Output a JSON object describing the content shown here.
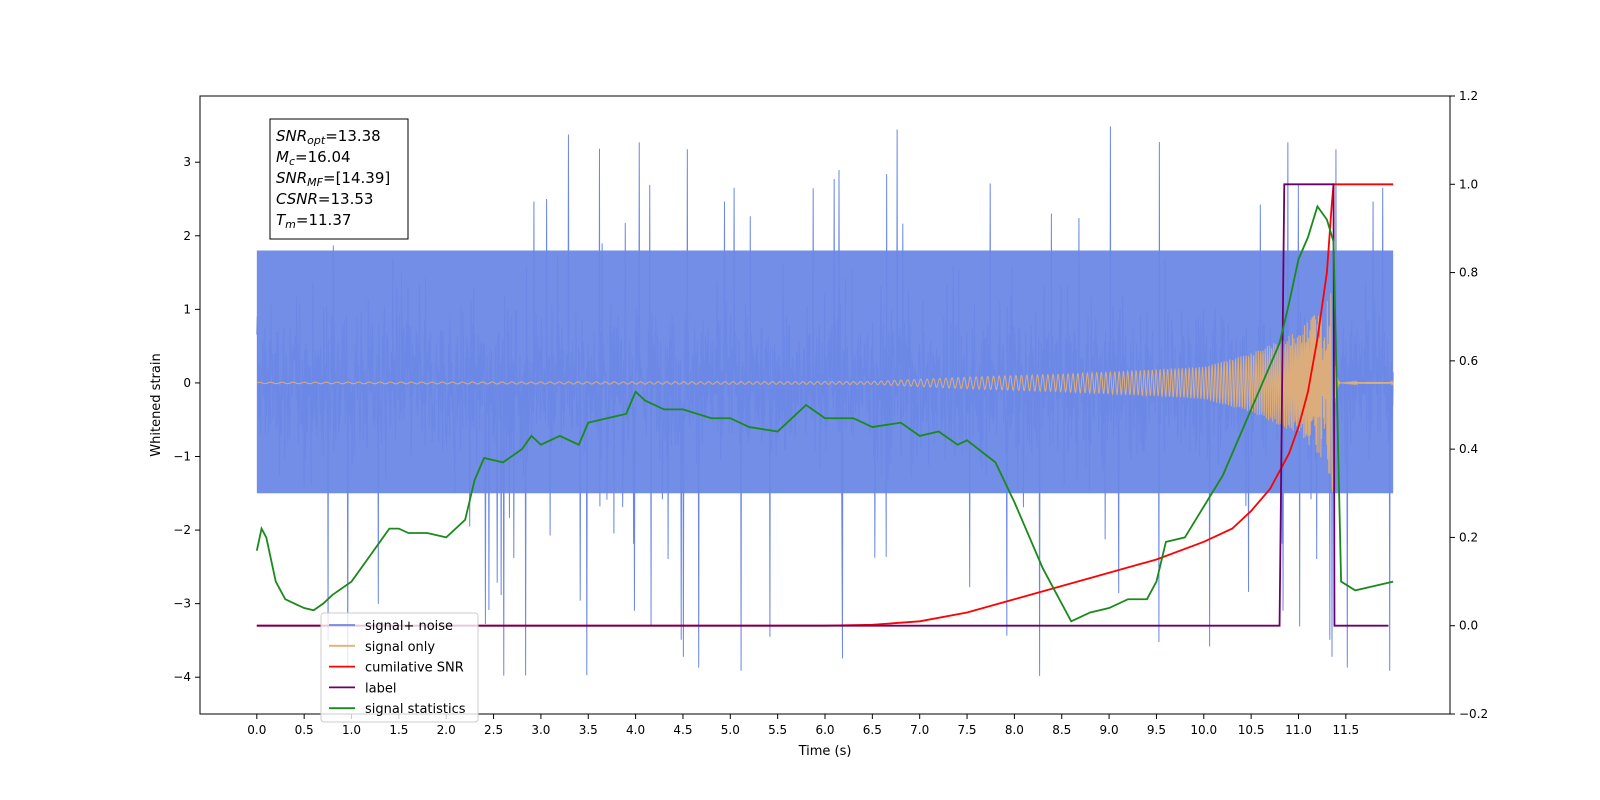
{
  "chart_data": {
    "type": "line",
    "xlabel": "Time (s)",
    "ylabel": "Whitened strain",
    "xlim": [
      -0.6,
      12.6
    ],
    "ylim": [
      -4.5,
      3.9
    ],
    "y2lim": [
      -0.2,
      1.2
    ],
    "xticks": [
      "0.0",
      "0.5",
      "1.0",
      "1.5",
      "2.0",
      "2.5",
      "3.0",
      "3.5",
      "4.0",
      "4.5",
      "5.0",
      "5.5",
      "6.0",
      "6.5",
      "7.0",
      "7.5",
      "8.0",
      "8.5",
      "9.0",
      "9.5",
      "10.0",
      "10.5",
      "11.0",
      "11.5"
    ],
    "yticks": [
      "3",
      "2",
      "1",
      "0",
      "−1",
      "−2",
      "−3",
      "−4"
    ],
    "y2ticks": [
      "1.2",
      "1.0",
      "0.8",
      "0.6",
      "0.4",
      "0.2",
      "0.0",
      "−0.2"
    ],
    "annotation": [
      {
        "sym": "SNR",
        "sub": "opt",
        "value": "=13.38"
      },
      {
        "sym": "M",
        "sub": "c",
        "value": "=16.04"
      },
      {
        "sym": "SNR",
        "sub": "MF",
        "value": "=[14.39]"
      },
      {
        "sym": "CSNR",
        "sub": "",
        "value": "=13.53"
      },
      {
        "sym": "T",
        "sub": "m",
        "value": "=11.37"
      }
    ],
    "legend_position": "lower-left",
    "series": [
      {
        "name": "signal+ noise",
        "axis": "left",
        "color": "#6b88e6",
        "noise_band": [
          -1.5,
          2.0
        ],
        "spike_range": [
          -4.0,
          3.5
        ],
        "x_range": [
          0.0,
          12.0
        ]
      },
      {
        "name": "signal only",
        "axis": "left",
        "color": "#e8b070",
        "chirp_envelope": [
          [
            0,
            0.01
          ],
          [
            6.5,
            0.02
          ],
          [
            7.5,
            0.08
          ],
          [
            8.5,
            0.12
          ],
          [
            9.5,
            0.18
          ],
          [
            10.0,
            0.22
          ],
          [
            10.5,
            0.4
          ],
          [
            11.0,
            0.7
          ],
          [
            11.3,
            1.1
          ],
          [
            11.37,
            1.6
          ],
          [
            11.45,
            0.02
          ],
          [
            12.0,
            0.01
          ]
        ]
      },
      {
        "name": "cumilative SNR",
        "axis": "right",
        "color": "#ff0000",
        "x": [
          0,
          6.0,
          6.5,
          7.0,
          7.5,
          8.0,
          8.5,
          9.0,
          9.5,
          10.0,
          10.3,
          10.5,
          10.7,
          10.9,
          11.0,
          11.1,
          11.2,
          11.3,
          11.35,
          11.37,
          11.5,
          12.0
        ],
        "y": [
          0,
          0,
          0.002,
          0.01,
          0.03,
          0.06,
          0.09,
          0.12,
          0.15,
          0.19,
          0.22,
          0.26,
          0.31,
          0.39,
          0.45,
          0.53,
          0.65,
          0.8,
          0.95,
          1.0,
          1.0,
          1.0
        ]
      },
      {
        "name": "label",
        "axis": "right",
        "color": "#6a006a",
        "x": [
          0,
          10.8,
          10.85,
          11.37,
          11.38,
          11.95
        ],
        "y": [
          0,
          0,
          1.0,
          1.0,
          0,
          0
        ]
      },
      {
        "name": "signal statistics",
        "axis": "right",
        "color": "#1a8a1a",
        "x": [
          0,
          0.05,
          0.1,
          0.2,
          0.3,
          0.4,
          0.5,
          0.6,
          0.7,
          0.8,
          1.0,
          1.2,
          1.4,
          1.5,
          1.6,
          1.8,
          2.0,
          2.2,
          2.3,
          2.4,
          2.6,
          2.8,
          2.9,
          3.0,
          3.2,
          3.4,
          3.5,
          3.7,
          3.9,
          4.0,
          4.1,
          4.3,
          4.5,
          4.8,
          5.0,
          5.2,
          5.5,
          5.8,
          6.0,
          6.3,
          6.5,
          6.8,
          7.0,
          7.2,
          7.4,
          7.5,
          7.8,
          8.0,
          8.3,
          8.5,
          8.6,
          8.8,
          9.0,
          9.2,
          9.4,
          9.5,
          9.6,
          9.8,
          10.0,
          10.2,
          10.4,
          10.6,
          10.8,
          10.9,
          11.0,
          11.1,
          11.2,
          11.3,
          11.37,
          11.45,
          11.6,
          11.8,
          12.0
        ],
        "y": [
          0.17,
          0.22,
          0.2,
          0.1,
          0.06,
          0.05,
          0.04,
          0.035,
          0.05,
          0.07,
          0.1,
          0.16,
          0.22,
          0.22,
          0.21,
          0.21,
          0.2,
          0.24,
          0.33,
          0.38,
          0.37,
          0.4,
          0.43,
          0.41,
          0.43,
          0.41,
          0.46,
          0.47,
          0.48,
          0.53,
          0.51,
          0.49,
          0.49,
          0.47,
          0.47,
          0.45,
          0.44,
          0.5,
          0.47,
          0.47,
          0.45,
          0.46,
          0.43,
          0.44,
          0.41,
          0.42,
          0.37,
          0.28,
          0.13,
          0.05,
          0.01,
          0.03,
          0.04,
          0.06,
          0.06,
          0.1,
          0.19,
          0.2,
          0.27,
          0.34,
          0.44,
          0.54,
          0.64,
          0.73,
          0.83,
          0.88,
          0.95,
          0.92,
          0.87,
          0.1,
          0.08,
          0.09,
          0.1
        ]
      }
    ]
  }
}
